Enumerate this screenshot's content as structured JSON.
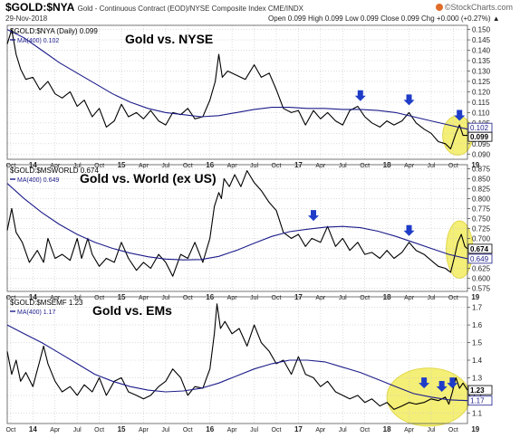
{
  "header": {
    "symbol": "$GOLD:$NYA",
    "description": "Gold - Continuous Contract (EOD)/NYSE Composite Index  CME/INDX",
    "date": "29-Nov-2018",
    "stats": "Open 0.099  High 0.099  Low 0.099  Close 0.099  Chg +0.000 (+0.27%) ▲",
    "brand": "©StockCharts.com",
    "brand_icon": "stockcharts-logo-icon"
  },
  "colors": {
    "price": "#000000",
    "ma": "#1c1c8a",
    "arrow": "#1f3cc8",
    "highlight": "#f2ec5e",
    "grid": "#c8c8c8",
    "border": "#555555",
    "ma_tag": "#1c1c8a"
  },
  "x_labels": [
    "Oct",
    "14",
    "Apr",
    "Jul",
    "Oct",
    "15",
    "Apr",
    "Jul",
    "Oct",
    "16",
    "Apr",
    "Jul",
    "Oct",
    "17",
    "Apr",
    "Jul",
    "Oct",
    "18",
    "Apr",
    "Jul",
    "Oct",
    "19"
  ],
  "chart_data": [
    {
      "type": "line",
      "legend_price": "$GOLD:$NYA (Daily) 0.099",
      "legend_ma": "MA(400) 0.102",
      "annotation": "Gold vs. NYSE",
      "yticks": [
        "0.150",
        "0.145",
        "0.140",
        "0.135",
        "0.130",
        "0.125",
        "0.120",
        "0.115",
        "0.110",
        "0.105",
        "0.100",
        "0.095",
        "0.090"
      ],
      "tag_ma": "0.102",
      "tag_price": "0.099",
      "ylim": [
        0.0875,
        0.152
      ],
      "t_range": [
        2013.71,
        2018.91
      ],
      "price_series": [
        [
          2013.71,
          0.143
        ],
        [
          2013.76,
          0.15
        ],
        [
          2013.81,
          0.138
        ],
        [
          2013.86,
          0.131
        ],
        [
          2013.92,
          0.126
        ],
        [
          2014.0,
          0.127
        ],
        [
          2014.08,
          0.121
        ],
        [
          2014.17,
          0.125
        ],
        [
          2014.25,
          0.119
        ],
        [
          2014.33,
          0.117
        ],
        [
          2014.42,
          0.12
        ],
        [
          2014.5,
          0.113
        ],
        [
          2014.58,
          0.116
        ],
        [
          2014.67,
          0.108
        ],
        [
          2014.75,
          0.112
        ],
        [
          2014.83,
          0.103
        ],
        [
          2014.92,
          0.106
        ],
        [
          2015.0,
          0.114
        ],
        [
          2015.08,
          0.108
        ],
        [
          2015.17,
          0.11
        ],
        [
          2015.25,
          0.107
        ],
        [
          2015.33,
          0.111
        ],
        [
          2015.42,
          0.106
        ],
        [
          2015.5,
          0.104
        ],
        [
          2015.58,
          0.11
        ],
        [
          2015.67,
          0.109
        ],
        [
          2015.75,
          0.112
        ],
        [
          2015.83,
          0.107
        ],
        [
          2015.92,
          0.108
        ],
        [
          2016.0,
          0.116
        ],
        [
          2016.06,
          0.125
        ],
        [
          2016.1,
          0.138
        ],
        [
          2016.14,
          0.127
        ],
        [
          2016.2,
          0.13
        ],
        [
          2016.3,
          0.128
        ],
        [
          2016.4,
          0.126
        ],
        [
          2016.5,
          0.133
        ],
        [
          2016.58,
          0.127
        ],
        [
          2016.67,
          0.129
        ],
        [
          2016.75,
          0.121
        ],
        [
          2016.83,
          0.112
        ],
        [
          2016.92,
          0.11
        ],
        [
          2017.0,
          0.111
        ],
        [
          2017.08,
          0.104
        ],
        [
          2017.17,
          0.111
        ],
        [
          2017.25,
          0.107
        ],
        [
          2017.33,
          0.11
        ],
        [
          2017.42,
          0.106
        ],
        [
          2017.5,
          0.104
        ],
        [
          2017.58,
          0.111
        ],
        [
          2017.67,
          0.113
        ],
        [
          2017.75,
          0.108
        ],
        [
          2017.83,
          0.105
        ],
        [
          2017.92,
          0.103
        ],
        [
          2018.0,
          0.106
        ],
        [
          2018.08,
          0.104
        ],
        [
          2018.17,
          0.106
        ],
        [
          2018.25,
          0.11
        ],
        [
          2018.33,
          0.105
        ],
        [
          2018.42,
          0.102
        ],
        [
          2018.5,
          0.1
        ],
        [
          2018.58,
          0.096
        ],
        [
          2018.66,
          0.095
        ],
        [
          2018.72,
          0.0925
        ],
        [
          2018.78,
          0.1
        ],
        [
          2018.82,
          0.104
        ],
        [
          2018.86,
          0.099
        ],
        [
          2018.91,
          0.099
        ]
      ],
      "ma_series": [
        [
          2013.71,
          0.15
        ],
        [
          2013.9,
          0.146
        ],
        [
          2014.1,
          0.14
        ],
        [
          2014.3,
          0.134
        ],
        [
          2014.5,
          0.129
        ],
        [
          2014.7,
          0.124
        ],
        [
          2014.9,
          0.119
        ],
        [
          2015.1,
          0.115
        ],
        [
          2015.3,
          0.112
        ],
        [
          2015.5,
          0.11
        ],
        [
          2015.7,
          0.109
        ],
        [
          2015.9,
          0.108
        ],
        [
          2016.1,
          0.1085
        ],
        [
          2016.3,
          0.11
        ],
        [
          2016.5,
          0.1115
        ],
        [
          2016.7,
          0.1125
        ],
        [
          2016.9,
          0.1125
        ],
        [
          2017.1,
          0.112
        ],
        [
          2017.3,
          0.112
        ],
        [
          2017.5,
          0.1115
        ],
        [
          2017.7,
          0.1115
        ],
        [
          2017.9,
          0.111
        ],
        [
          2018.1,
          0.11
        ],
        [
          2018.3,
          0.108
        ],
        [
          2018.5,
          0.106
        ],
        [
          2018.7,
          0.104
        ],
        [
          2018.91,
          0.102
        ]
      ],
      "arrows": [
        [
          2017.7,
          0.1155
        ],
        [
          2018.25,
          0.1135
        ],
        [
          2018.82,
          0.106
        ]
      ],
      "highlight": {
        "t_center": 2018.8,
        "value_center": 0.099,
        "t_halfwidth": 0.17,
        "value_halfheight": 0.0095
      }
    },
    {
      "type": "line",
      "legend_price": "$GOLD:$MSWORLD 0.674",
      "legend_ma": "MA(400) 0.649",
      "annotation": "Gold vs. World (ex US)",
      "yticks": [
        "0.875",
        "0.850",
        "0.825",
        "0.800",
        "0.775",
        "0.750",
        "0.725",
        "0.700",
        "0.675",
        "0.650",
        "0.625",
        "0.600",
        "0.575"
      ],
      "tag_price": "0.674",
      "tag_ma": "0.649",
      "ylim": [
        0.567,
        0.885
      ],
      "t_range": [
        2013.71,
        2018.91
      ],
      "price_series": [
        [
          2013.71,
          0.72
        ],
        [
          2013.76,
          0.775
        ],
        [
          2013.81,
          0.715
        ],
        [
          2013.88,
          0.69
        ],
        [
          2013.96,
          0.64
        ],
        [
          2014.05,
          0.67
        ],
        [
          2014.12,
          0.64
        ],
        [
          2014.17,
          0.7
        ],
        [
          2014.25,
          0.65
        ],
        [
          2014.33,
          0.66
        ],
        [
          2014.42,
          0.645
        ],
        [
          2014.5,
          0.7
        ],
        [
          2014.55,
          0.65
        ],
        [
          2014.62,
          0.7
        ],
        [
          2014.67,
          0.66
        ],
        [
          2014.75,
          0.63
        ],
        [
          2014.83,
          0.65
        ],
        [
          2014.92,
          0.64
        ],
        [
          2015.0,
          0.69
        ],
        [
          2015.08,
          0.65
        ],
        [
          2015.17,
          0.62
        ],
        [
          2015.25,
          0.64
        ],
        [
          2015.33,
          0.625
        ],
        [
          2015.42,
          0.66
        ],
        [
          2015.5,
          0.64
        ],
        [
          2015.58,
          0.605
        ],
        [
          2015.67,
          0.66
        ],
        [
          2015.75,
          0.65
        ],
        [
          2015.83,
          0.69
        ],
        [
          2015.92,
          0.64
        ],
        [
          2016.0,
          0.7
        ],
        [
          2016.05,
          0.78
        ],
        [
          2016.1,
          0.815
        ],
        [
          2016.13,
          0.8
        ],
        [
          2016.16,
          0.85
        ],
        [
          2016.22,
          0.83
        ],
        [
          2016.28,
          0.86
        ],
        [
          2016.35,
          0.83
        ],
        [
          2016.42,
          0.87
        ],
        [
          2016.5,
          0.84
        ],
        [
          2016.58,
          0.82
        ],
        [
          2016.67,
          0.79
        ],
        [
          2016.75,
          0.77
        ],
        [
          2016.83,
          0.715
        ],
        [
          2016.92,
          0.7
        ],
        [
          2017.0,
          0.71
        ],
        [
          2017.08,
          0.68
        ],
        [
          2017.15,
          0.7
        ],
        [
          2017.25,
          0.69
        ],
        [
          2017.33,
          0.73
        ],
        [
          2017.42,
          0.68
        ],
        [
          2017.5,
          0.7
        ],
        [
          2017.58,
          0.67
        ],
        [
          2017.67,
          0.69
        ],
        [
          2017.75,
          0.66
        ],
        [
          2017.83,
          0.665
        ],
        [
          2017.92,
          0.65
        ],
        [
          2018.0,
          0.67
        ],
        [
          2018.08,
          0.65
        ],
        [
          2018.17,
          0.665
        ],
        [
          2018.25,
          0.69
        ],
        [
          2018.33,
          0.67
        ],
        [
          2018.42,
          0.66
        ],
        [
          2018.5,
          0.645
        ],
        [
          2018.58,
          0.63
        ],
        [
          2018.66,
          0.625
        ],
        [
          2018.72,
          0.615
        ],
        [
          2018.76,
          0.65
        ],
        [
          2018.8,
          0.69
        ],
        [
          2018.84,
          0.71
        ],
        [
          2018.88,
          0.68
        ],
        [
          2018.91,
          0.674
        ]
      ],
      "ma_series": [
        [
          2013.71,
          0.838
        ],
        [
          2013.9,
          0.8
        ],
        [
          2014.1,
          0.765
        ],
        [
          2014.3,
          0.735
        ],
        [
          2014.5,
          0.71
        ],
        [
          2014.7,
          0.69
        ],
        [
          2014.9,
          0.675
        ],
        [
          2015.1,
          0.663
        ],
        [
          2015.3,
          0.654
        ],
        [
          2015.5,
          0.648
        ],
        [
          2015.7,
          0.646
        ],
        [
          2015.9,
          0.647
        ],
        [
          2016.1,
          0.655
        ],
        [
          2016.3,
          0.67
        ],
        [
          2016.5,
          0.688
        ],
        [
          2016.7,
          0.705
        ],
        [
          2016.9,
          0.717
        ],
        [
          2017.1,
          0.723
        ],
        [
          2017.3,
          0.728
        ],
        [
          2017.5,
          0.73
        ],
        [
          2017.7,
          0.727
        ],
        [
          2017.9,
          0.718
        ],
        [
          2018.1,
          0.705
        ],
        [
          2018.3,
          0.69
        ],
        [
          2018.5,
          0.675
        ],
        [
          2018.7,
          0.66
        ],
        [
          2018.91,
          0.649
        ]
      ],
      "arrows": [
        [
          2017.17,
          0.744
        ],
        [
          2018.25,
          0.706
        ]
      ],
      "highlight": {
        "t_center": 2018.82,
        "value_center": 0.672,
        "t_halfwidth": 0.15,
        "value_halfheight": 0.072
      }
    },
    {
      "type": "line",
      "legend_price": "$GOLD:$MSEMF 1.23",
      "legend_ma": "MA(400) 1.17",
      "annotation": "Gold vs. EMs",
      "yticks": [
        "1.7",
        "1.6",
        "1.5",
        "1.4",
        "1.3",
        "1.2",
        "1.1"
      ],
      "tag_price": "1.23",
      "tag_ma": "1.17",
      "ylim": [
        1.04,
        1.76
      ],
      "t_range": [
        2013.71,
        2018.91
      ],
      "price_series": [
        [
          2013.71,
          1.45
        ],
        [
          2013.76,
          1.32
        ],
        [
          2013.81,
          1.4
        ],
        [
          2013.86,
          1.28
        ],
        [
          2013.92,
          1.33
        ],
        [
          2014.0,
          1.25
        ],
        [
          2014.08,
          1.4
        ],
        [
          2014.12,
          1.48
        ],
        [
          2014.17,
          1.38
        ],
        [
          2014.25,
          1.28
        ],
        [
          2014.33,
          1.22
        ],
        [
          2014.42,
          1.25
        ],
        [
          2014.5,
          1.2
        ],
        [
          2014.58,
          1.26
        ],
        [
          2014.67,
          1.22
        ],
        [
          2014.75,
          1.3
        ],
        [
          2014.83,
          1.2
        ],
        [
          2014.92,
          1.28
        ],
        [
          2015.0,
          1.3
        ],
        [
          2015.08,
          1.22
        ],
        [
          2015.17,
          1.2
        ],
        [
          2015.25,
          1.18
        ],
        [
          2015.33,
          1.2
        ],
        [
          2015.42,
          1.25
        ],
        [
          2015.5,
          1.28
        ],
        [
          2015.58,
          1.35
        ],
        [
          2015.67,
          1.3
        ],
        [
          2015.75,
          1.2
        ],
        [
          2015.83,
          1.25
        ],
        [
          2015.92,
          1.24
        ],
        [
          2016.0,
          1.35
        ],
        [
          2016.05,
          1.55
        ],
        [
          2016.08,
          1.72
        ],
        [
          2016.12,
          1.58
        ],
        [
          2016.17,
          1.62
        ],
        [
          2016.25,
          1.55
        ],
        [
          2016.33,
          1.58
        ],
        [
          2016.42,
          1.48
        ],
        [
          2016.5,
          1.6
        ],
        [
          2016.58,
          1.5
        ],
        [
          2016.67,
          1.45
        ],
        [
          2016.75,
          1.38
        ],
        [
          2016.83,
          1.4
        ],
        [
          2016.92,
          1.32
        ],
        [
          2017.0,
          1.42
        ],
        [
          2017.08,
          1.32
        ],
        [
          2017.17,
          1.3
        ],
        [
          2017.25,
          1.25
        ],
        [
          2017.33,
          1.28
        ],
        [
          2017.42,
          1.22
        ],
        [
          2017.5,
          1.2
        ],
        [
          2017.58,
          1.18
        ],
        [
          2017.67,
          1.2
        ],
        [
          2017.75,
          1.16
        ],
        [
          2017.83,
          1.18
        ],
        [
          2017.92,
          1.14
        ],
        [
          2018.0,
          1.16
        ],
        [
          2018.08,
          1.12
        ],
        [
          2018.17,
          1.14
        ],
        [
          2018.25,
          1.16
        ],
        [
          2018.33,
          1.15
        ],
        [
          2018.42,
          1.16
        ],
        [
          2018.5,
          1.18
        ],
        [
          2018.58,
          1.17
        ],
        [
          2018.66,
          1.19
        ],
        [
          2018.7,
          1.15
        ],
        [
          2018.74,
          1.22
        ],
        [
          2018.78,
          1.3
        ],
        [
          2018.82,
          1.24
        ],
        [
          2018.86,
          1.27
        ],
        [
          2018.91,
          1.23
        ]
      ],
      "ma_series": [
        [
          2013.71,
          1.6
        ],
        [
          2013.9,
          1.55
        ],
        [
          2014.1,
          1.5
        ],
        [
          2014.3,
          1.44
        ],
        [
          2014.5,
          1.38
        ],
        [
          2014.7,
          1.32
        ],
        [
          2014.9,
          1.28
        ],
        [
          2015.1,
          1.25
        ],
        [
          2015.3,
          1.23
        ],
        [
          2015.5,
          1.22
        ],
        [
          2015.7,
          1.225
        ],
        [
          2015.9,
          1.24
        ],
        [
          2016.1,
          1.27
        ],
        [
          2016.3,
          1.31
        ],
        [
          2016.5,
          1.35
        ],
        [
          2016.7,
          1.38
        ],
        [
          2016.9,
          1.4
        ],
        [
          2017.1,
          1.4
        ],
        [
          2017.3,
          1.39
        ],
        [
          2017.5,
          1.36
        ],
        [
          2017.7,
          1.33
        ],
        [
          2017.9,
          1.29
        ],
        [
          2018.1,
          1.25
        ],
        [
          2018.3,
          1.21
        ],
        [
          2018.5,
          1.19
        ],
        [
          2018.7,
          1.175
        ],
        [
          2018.91,
          1.17
        ]
      ],
      "arrows": [
        [
          2018.42,
          1.24
        ],
        [
          2018.62,
          1.22
        ],
        [
          2018.74,
          1.24
        ]
      ],
      "highlight": {
        "t_center": 2018.47,
        "value_center": 1.19,
        "t_halfwidth": 0.47,
        "value_halfheight": 0.165
      }
    }
  ]
}
